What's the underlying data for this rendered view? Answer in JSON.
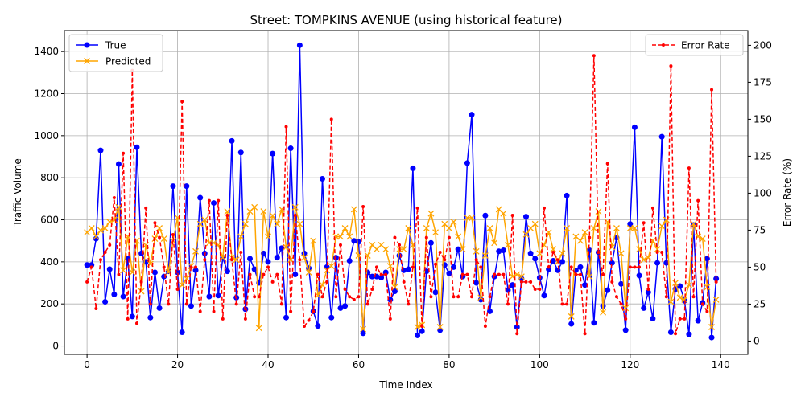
{
  "chart_data": {
    "type": "line",
    "title": "Street: TOMPKINS AVENUE (using historical feature)",
    "xlabel": "Time Index",
    "ylabel_left": "Traffic Volume",
    "ylabel_right": "Error Rate (%)",
    "xlim": [
      -5,
      146
    ],
    "ylim_left": [
      -40,
      1500
    ],
    "ylim_right": [
      -9,
      210
    ],
    "xticks": [
      0,
      20,
      40,
      60,
      80,
      100,
      120,
      140
    ],
    "yticks_left": [
      0,
      200,
      400,
      600,
      800,
      1000,
      1200,
      1400
    ],
    "yticks_right": [
      0,
      25,
      50,
      75,
      100,
      125,
      150,
      175,
      200
    ],
    "grid": true,
    "legend_left": {
      "placement": "top-left",
      "entries": [
        "True",
        "Predicted"
      ]
    },
    "legend_right": {
      "placement": "top-right",
      "entries": [
        "Error Rate"
      ]
    },
    "colors": {
      "true": "#0000ff",
      "predicted": "#ffa500",
      "error": "#ff0000",
      "grid": "#b0b0b0"
    },
    "series": [
      {
        "name": "True",
        "axis": "left",
        "values": [
          385,
          385,
          510,
          930,
          210,
          365,
          245,
          865,
          235,
          415,
          140,
          945,
          440,
          400,
          135,
          350,
          180,
          330,
          355,
          760,
          350,
          65,
          760,
          190,
          360,
          705,
          440,
          235,
          680,
          240,
          420,
          355,
          975,
          230,
          920,
          175,
          415,
          365,
          300,
          440,
          400,
          915,
          420,
          465,
          135,
          940,
          340,
          1430,
          440,
          370,
          165,
          95,
          795,
          375,
          135,
          420,
          180,
          190,
          405,
          500,
          495,
          60,
          350,
          330,
          330,
          325,
          350,
          220,
          260,
          430,
          360,
          365,
          845,
          50,
          70,
          355,
          490,
          255,
          75,
          385,
          345,
          375,
          460,
          330,
          870,
          1100,
          300,
          220,
          620,
          165,
          330,
          450,
          455,
          265,
          290,
          90,
          320,
          615,
          440,
          415,
          325,
          240,
          365,
          405,
          360,
          400,
          715,
          105,
          360,
          375,
          290,
          455,
          110,
          445,
          190,
          265,
          395,
          515,
          295,
          75,
          580,
          1040,
          335,
          180,
          255,
          130,
          395,
          995,
          395,
          65,
          270,
          285,
          215,
          55,
          575,
          120,
          205,
          415,
          40,
          320
        ]
      },
      {
        "name": "Predicted",
        "axis": "left",
        "values": [
          540,
          560,
          520,
          550,
          560,
          590,
          600,
          660,
          360,
          520,
          350,
          500,
          260,
          480,
          390,
          510,
          560,
          510,
          350,
          500,
          610,
          290,
          320,
          380,
          450,
          580,
          600,
          490,
          490,
          480,
          420,
          640,
          420,
          410,
          520,
          580,
          640,
          660,
          85,
          640,
          520,
          620,
          580,
          650,
          470,
          410,
          660,
          580,
          420,
          350,
          500,
          240,
          290,
          360,
          380,
          520,
          520,
          560,
          520,
          650,
          430,
          80,
          430,
          480,
          460,
          480,
          460,
          380,
          280,
          460,
          460,
          560,
          480,
          90,
          100,
          560,
          630,
          540,
          90,
          580,
          560,
          590,
          520,
          460,
          610,
          610,
          450,
          230,
          430,
          560,
          490,
          650,
          630,
          480,
          330,
          340,
          330,
          530,
          560,
          580,
          440,
          480,
          540,
          460,
          400,
          440,
          560,
          140,
          520,
          500,
          540,
          330,
          560,
          640,
          160,
          590,
          470,
          560,
          440,
          180,
          560,
          560,
          460,
          410,
          420,
          500,
          460,
          570,
          600,
          210,
          300,
          230,
          220,
          290,
          580,
          520,
          510,
          280,
          90,
          220
        ]
      },
      {
        "name": "Error Rate",
        "axis": "right",
        "values": [
          40,
          50,
          22,
          55,
          60,
          65,
          97,
          45,
          127,
          15,
          183,
          12,
          40,
          90,
          25,
          80,
          70,
          50,
          25,
          72,
          35,
          162,
          25,
          50,
          50,
          20,
          55,
          95,
          20,
          95,
          15,
          85,
          55,
          25,
          60,
          15,
          45,
          30,
          30,
          45,
          50,
          40,
          45,
          25,
          145,
          20,
          85,
          55,
          10,
          14,
          20,
          45,
          30,
          40,
          150,
          30,
          65,
          35,
          30,
          28,
          30,
          91,
          25,
          35,
          50,
          45,
          45,
          15,
          70,
          65,
          40,
          25,
          50,
          90,
          10,
          70,
          30,
          52,
          60,
          55,
          70,
          30,
          30,
          45,
          45,
          30,
          55,
          50,
          10,
          30,
          45,
          45,
          45,
          25,
          85,
          5,
          40,
          40,
          40,
          35,
          35,
          90,
          50,
          60,
          55,
          25,
          25,
          50,
          45,
          45,
          5,
          70,
          193,
          60,
          45,
          120,
          40,
          30,
          25,
          15,
          50,
          50,
          50,
          80,
          35,
          90,
          60,
          60,
          30,
          186,
          5,
          15,
          15,
          117,
          30,
          95,
          25,
          20,
          170,
          40
        ]
      }
    ]
  }
}
